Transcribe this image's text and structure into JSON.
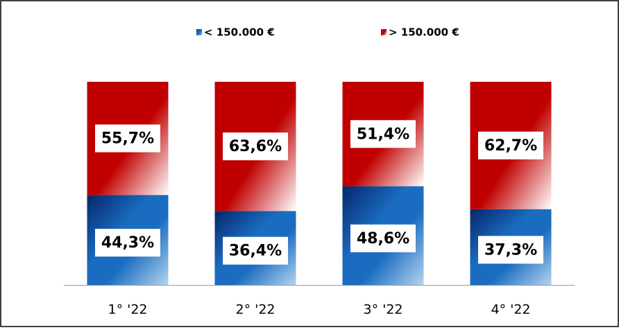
{
  "chart_data": {
    "type": "stacked_bar",
    "categories": [
      "1° '22",
      "2° '22",
      "3° '22",
      "4° '22"
    ],
    "series": [
      {
        "name": "< 150.000 €",
        "color": "#1a6cc0",
        "values": [
          44.3,
          36.4,
          48.6,
          37.3
        ],
        "value_labels": [
          "44,3%",
          "36,4%",
          "48,6%",
          "37,3%"
        ]
      },
      {
        "name": "> 150.000 €",
        "color": "#c00000",
        "values": [
          55.7,
          63.6,
          51.4,
          62.7
        ],
        "value_labels": [
          "55,7%",
          "63,6%",
          "51,4%",
          "62,7%"
        ]
      }
    ]
  }
}
